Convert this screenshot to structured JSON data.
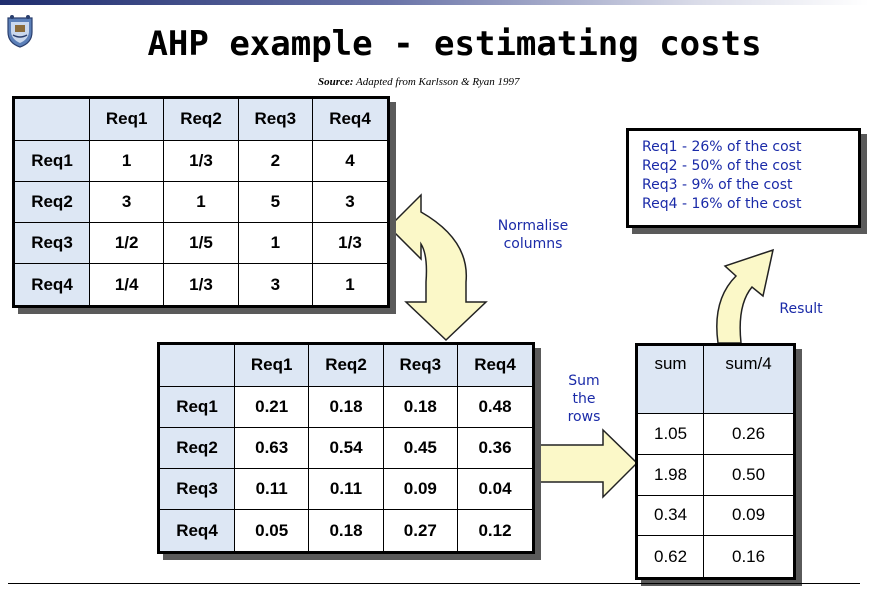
{
  "slide": {
    "title": "AHP example - estimating costs",
    "source_label": "Source:",
    "source_text": "Adapted from Karlsson & Ryan 1997",
    "logo_icon": "crest-icon"
  },
  "pairwise": {
    "columns": [
      "Req1",
      "Req2",
      "Req3",
      "Req4"
    ],
    "rows": [
      {
        "label": "Req1",
        "cells": [
          "1",
          "1/3",
          "2",
          "4"
        ]
      },
      {
        "label": "Req2",
        "cells": [
          "3",
          "1",
          "5",
          "3"
        ]
      },
      {
        "label": "Req3",
        "cells": [
          "1/2",
          "1/5",
          "1",
          "1/3"
        ]
      },
      {
        "label": "Req4",
        "cells": [
          "1/4",
          "1/3",
          "3",
          "1"
        ]
      }
    ]
  },
  "normalised": {
    "columns": [
      "Req1",
      "Req2",
      "Req3",
      "Req4"
    ],
    "rows": [
      {
        "label": "Req1",
        "cells": [
          "0.21",
          "0.18",
          "0.18",
          "0.48"
        ]
      },
      {
        "label": "Req2",
        "cells": [
          "0.63",
          "0.54",
          "0.45",
          "0.36"
        ]
      },
      {
        "label": "Req3",
        "cells": [
          "0.11",
          "0.11",
          "0.09",
          "0.04"
        ]
      },
      {
        "label": "Req4",
        "cells": [
          "0.05",
          "0.18",
          "0.27",
          "0.12"
        ]
      }
    ]
  },
  "sums": {
    "columns": [
      "sum",
      "sum/4"
    ],
    "rows": [
      [
        "1.05",
        "0.26"
      ],
      [
        "1.98",
        "0.50"
      ],
      [
        "0.34",
        "0.09"
      ],
      [
        "0.62",
        "0.16"
      ]
    ]
  },
  "annotations": {
    "normalise": [
      "Normalise",
      "columns"
    ],
    "sum": [
      "Sum",
      "the",
      "rows"
    ],
    "result": "Result"
  },
  "result_box": [
    "Req1 - 26% of the cost",
    "Req2 - 50% of the cost",
    "Req3 - 9% of the cost",
    "Req4 - 16% of the cost"
  ],
  "colors": {
    "header_fill": "#dde7f4",
    "arrow_fill": "#fbf8c8",
    "note_text": "#1a2aa8"
  }
}
